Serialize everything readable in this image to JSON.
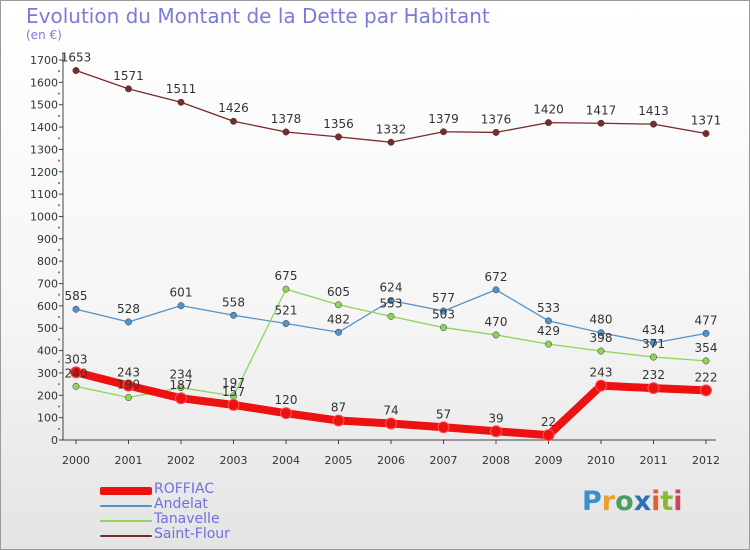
{
  "title": "Evolution du Montant de la Dette par Habitant",
  "unit_label": "(en €)",
  "logo_text": "Proxiti",
  "chart_data": {
    "type": "line",
    "x": [
      "2000",
      "2001",
      "2002",
      "2003",
      "2004",
      "2005",
      "2006",
      "2007",
      "2008",
      "2009",
      "2010",
      "2011",
      "2012"
    ],
    "ylim": [
      0,
      1700
    ],
    "yticks": [
      0,
      100,
      200,
      300,
      400,
      500,
      600,
      700,
      800,
      900,
      1000,
      1100,
      1200,
      1300,
      1400,
      1500,
      1600,
      1700
    ],
    "grid": false,
    "legend_position": "bottom-left",
    "series": [
      {
        "name": "Saint-Flour",
        "color": "#7a2a2a",
        "values": [
          1653,
          1571,
          1511,
          1426,
          1378,
          1356,
          1332,
          1379,
          1376,
          1420,
          1417,
          1413,
          1371
        ]
      },
      {
        "name": "Andelat",
        "color": "#5592c8",
        "values": [
          585,
          528,
          601,
          558,
          521,
          482,
          624,
          577,
          672,
          533,
          480,
          434,
          477
        ]
      },
      {
        "name": "Tanavelle",
        "color": "#8fd45a",
        "values": [
          240,
          190,
          234,
          197,
          675,
          605,
          553,
          503,
          470,
          429,
          398,
          371,
          354
        ]
      },
      {
        "name": "ROFFIAC",
        "color": "#ee1111",
        "values": [
          303,
          243,
          187,
          157,
          120,
          87,
          74,
          57,
          39,
          22,
          243,
          232,
          222
        ]
      }
    ],
    "data_labels": {
      "Saint-Flour": [
        "1653",
        "1571",
        "1511",
        "1426",
        "1378",
        "1356",
        "1332",
        "1379",
        "1376",
        "1420",
        "1417",
        "1413",
        "1371"
      ],
      "Andelat": [
        "585",
        "528",
        "601",
        "558",
        "521",
        "482",
        "624",
        "577",
        "672",
        "533",
        "480",
        "434",
        "477"
      ],
      "Tanavelle": [
        "240",
        "190",
        "234",
        "197",
        "675",
        "605",
        "553",
        "503",
        "470",
        "429",
        "398",
        "371",
        "354"
      ],
      "ROFFIAC": [
        "303",
        "243",
        "187",
        "157",
        "120",
        "87",
        "74",
        "57",
        "39",
        "22",
        "243",
        "232",
        "222"
      ]
    },
    "legend_order": [
      "ROFFIAC",
      "Andelat",
      "Tanavelle",
      "Saint-Flour"
    ]
  }
}
